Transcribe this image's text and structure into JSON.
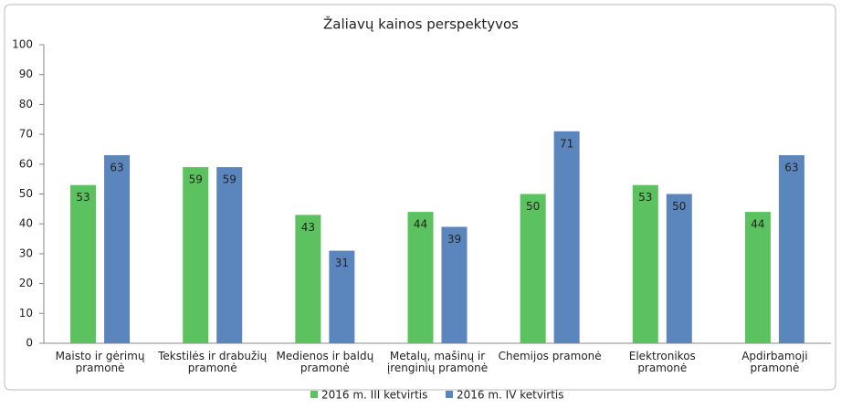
{
  "chart_data": {
    "type": "bar",
    "title": "Žaliavų kainos perspektyvos",
    "categories": [
      "Maisto ir gėrimų\npramonė",
      "Tekstilės ir drabužių\npramonė",
      "Medienos ir baldų\npramonė",
      "Metalų, mašinų ir\nįrenginių pramonė",
      "Chemijos pramonė",
      "Elektronikos\npramonė",
      "Apdirbamoji\npramonė"
    ],
    "series": [
      {
        "name": "2016 m. III ketvirtis",
        "color": "#5cc15f",
        "values": [
          53,
          59,
          43,
          44,
          50,
          53,
          44
        ]
      },
      {
        "name": "2016 m. IV ketvirtis",
        "color": "#5b86bd",
        "values": [
          63,
          59,
          31,
          39,
          71,
          50,
          63
        ]
      }
    ],
    "ylim": [
      0,
      100
    ],
    "yticks": [
      0,
      10,
      20,
      30,
      40,
      50,
      60,
      70,
      80,
      90,
      100
    ],
    "grid": false,
    "legend": "bottom"
  }
}
